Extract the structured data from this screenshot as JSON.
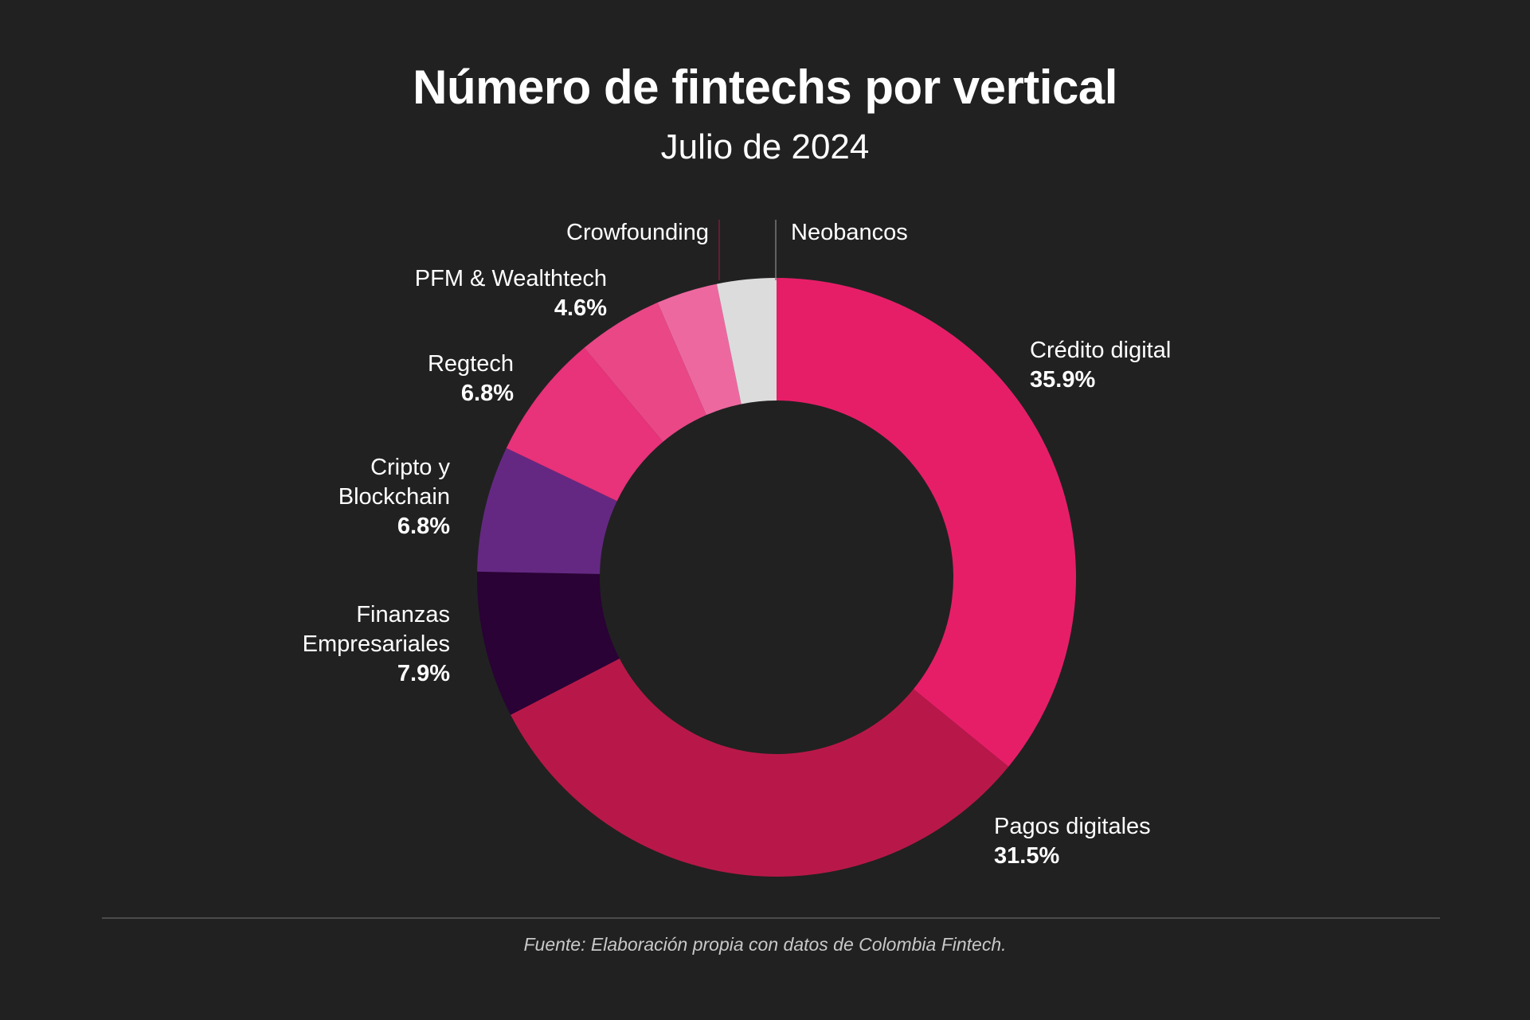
{
  "title": "Número de fintechs por vertical",
  "subtitle": "Julio de 2024",
  "source": "Fuente: Elaboración propia con datos de Colombia Fintech.",
  "chart_data": {
    "type": "pie",
    "title": "Número de fintechs por vertical",
    "subtitle": "Julio de 2024",
    "donut": true,
    "start": "12 o'clock",
    "direction": "clockwise",
    "slices": [
      {
        "name": "Crédito digital",
        "label_lines": [
          "Crédito digital"
        ],
        "pct_label": "35.9%",
        "value": 35.9,
        "color": "#e61e68"
      },
      {
        "name": "Pagos digitales",
        "label_lines": [
          "Pagos digitales"
        ],
        "pct_label": "31.5%",
        "value": 31.5,
        "color": "#b81849"
      },
      {
        "name": "Finanzas Empresariales",
        "label_lines": [
          "Finanzas",
          "Empresariales"
        ],
        "pct_label": "7.9%",
        "value": 7.9,
        "color": "#2a0236"
      },
      {
        "name": "Cripto y Blockchain",
        "label_lines": [
          "Cripto y",
          "Blockchain"
        ],
        "pct_label": "6.8%",
        "value": 6.8,
        "color": "#642882"
      },
      {
        "name": "Regtech",
        "label_lines": [
          "Regtech"
        ],
        "pct_label": "6.8%",
        "value": 6.8,
        "color": "#e8327a"
      },
      {
        "name": "PFM & Wealthtech",
        "label_lines": [
          "PFM & Wealthtech"
        ],
        "pct_label": "4.6%",
        "value": 4.6,
        "color": "#ea4787"
      },
      {
        "name": "Crowfounding",
        "label_lines": [
          "Crowfounding"
        ],
        "pct_label": "",
        "value": 3.3,
        "color": "#ee68a0"
      },
      {
        "name": "Neobancos",
        "label_lines": [
          "Neobancos"
        ],
        "pct_label": "",
        "value": 3.2,
        "color": "#dcdcdc"
      }
    ]
  }
}
